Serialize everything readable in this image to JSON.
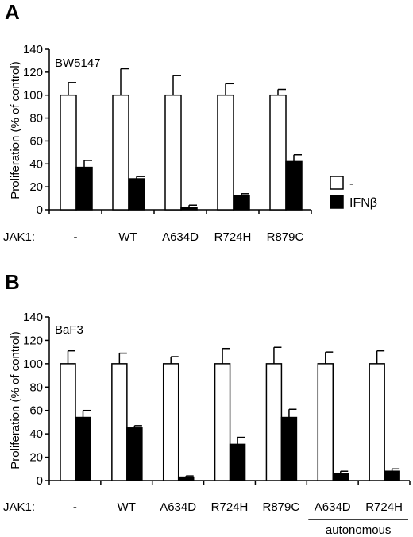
{
  "panel_a_label": "A",
  "panel_b_label": "B",
  "legend": [
    {
      "label": "-",
      "fill": "#ffffff"
    },
    {
      "label": "IFNβ",
      "fill": "#000000"
    }
  ],
  "colors": {
    "control_bar": "#ffffff",
    "ifnb_bar": "#000000",
    "stroke": "#000000"
  },
  "chart_data": [
    {
      "type": "bar",
      "cell_line": "BW5147",
      "ylabel": "Proliferation (% of control)",
      "row_label": "JAK1:",
      "ylim": [
        0,
        140
      ],
      "yticks": [
        0,
        20,
        40,
        60,
        80,
        100,
        120,
        140
      ],
      "categories": [
        "-",
        "WT",
        "A634D",
        "R724H",
        "R879C"
      ],
      "series": [
        {
          "name": "-",
          "values": [
            100,
            100,
            100,
            100,
            100
          ],
          "errors": [
            11,
            23,
            17,
            10,
            5
          ]
        },
        {
          "name": "IFNβ",
          "values": [
            37,
            27,
            2,
            12,
            42
          ],
          "errors": [
            6,
            2,
            2,
            2,
            6
          ]
        }
      ],
      "grid": false
    },
    {
      "type": "bar",
      "cell_line": "BaF3",
      "ylabel": "Proliferation (% of control)",
      "row_label": "JAK1:",
      "ylim": [
        0,
        140
      ],
      "yticks": [
        0,
        20,
        40,
        60,
        80,
        100,
        120,
        140
      ],
      "categories": [
        "-",
        "WT",
        "A634D",
        "R724H",
        "R879C",
        "A634D",
        "R724H"
      ],
      "group_annotation": {
        "label": "autonomous",
        "spans": [
          "A634D",
          "R724H"
        ]
      },
      "series": [
        {
          "name": "-",
          "values": [
            100,
            100,
            100,
            100,
            100,
            100,
            100
          ],
          "errors": [
            11,
            9,
            6,
            13,
            14,
            10,
            11
          ]
        },
        {
          "name": "IFNβ",
          "values": [
            54,
            45,
            3,
            31,
            54,
            6,
            8
          ],
          "errors": [
            6,
            2,
            1,
            6,
            7,
            2,
            2
          ]
        }
      ],
      "grid": false
    }
  ]
}
